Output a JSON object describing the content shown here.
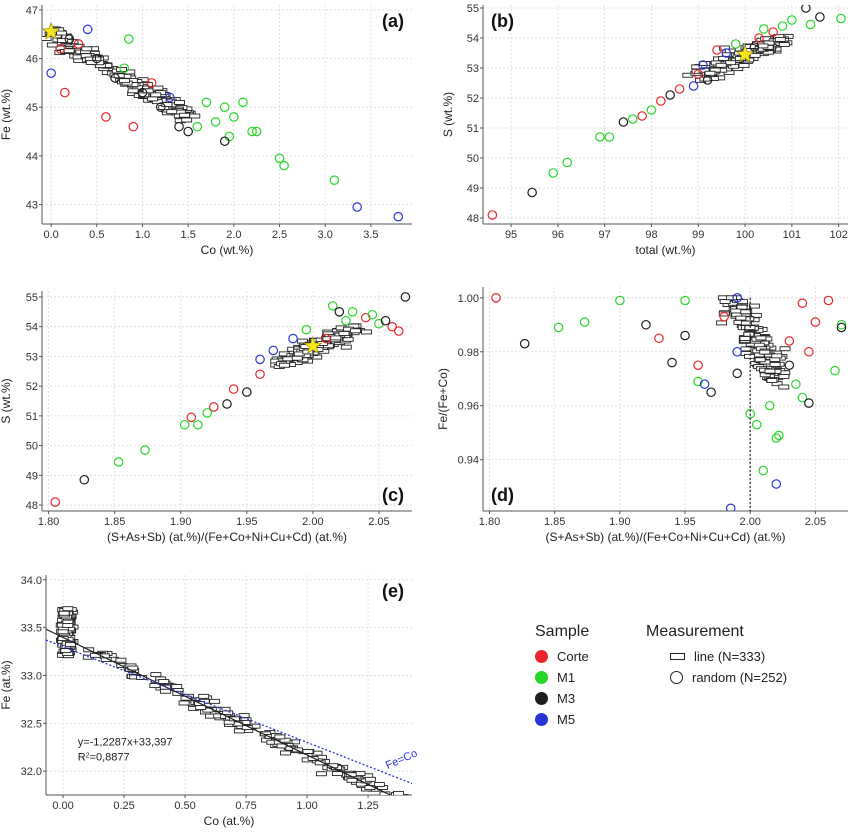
{
  "colors": {
    "Corte": "#e8262b",
    "M1": "#27d627",
    "M3": "#1f1f1f",
    "M5": "#2a34d6",
    "star": "#f7e51e",
    "fit_line": "#222222",
    "ideal_line": "#2a34d6"
  },
  "legend": {
    "sample_title": "Sample",
    "measurement_title": "Measurement",
    "samples": [
      {
        "label": "Corte",
        "color": "#e8262b"
      },
      {
        "label": "M1",
        "color": "#27d627"
      },
      {
        "label": "M3",
        "color": "#1f1f1f"
      },
      {
        "label": "M5",
        "color": "#2a34d6"
      }
    ],
    "measurements": [
      {
        "label": "line (N=333)",
        "symbol": "rectangle"
      },
      {
        "label": "random (N=252)",
        "symbol": "circle"
      }
    ]
  },
  "chart_data": [
    {
      "id": "a",
      "panel_label": "(a)",
      "type": "scatter",
      "xlabel": "Co (wt.%)",
      "ylabel": "Fe (wt.%)",
      "xlim": [
        -0.1,
        3.95
      ],
      "ylim": [
        42.6,
        47.1
      ],
      "xticks": [
        0.0,
        0.5,
        1.0,
        1.5,
        2.0,
        2.5,
        3.0,
        3.5
      ],
      "xtick_labels": [
        "0.0",
        "0.5",
        "1.0",
        "1.5",
        "2.0",
        "2.5",
        "3.0",
        "3.5"
      ],
      "yticks": [
        43,
        44,
        45,
        46,
        47
      ],
      "ytick_labels": [
        "43",
        "44",
        "45",
        "46",
        "47"
      ],
      "grid": true,
      "line_trend": {
        "x": [
          0.0,
          1.5
        ],
        "y": [
          46.5,
          44.8
        ],
        "n": 180
      },
      "random_points": [
        {
          "x": 0.1,
          "y": 46.2,
          "s": "Corte"
        },
        {
          "x": 0.15,
          "y": 45.3,
          "s": "Corte"
        },
        {
          "x": 0.6,
          "y": 44.8,
          "s": "Corte"
        },
        {
          "x": 0.9,
          "y": 44.6,
          "s": "Corte"
        },
        {
          "x": 1.1,
          "y": 45.5,
          "s": "Corte"
        },
        {
          "x": 0.3,
          "y": 46.3,
          "s": "Corte"
        },
        {
          "x": 0.8,
          "y": 45.8,
          "s": "M1"
        },
        {
          "x": 0.85,
          "y": 46.4,
          "s": "M1"
        },
        {
          "x": 1.7,
          "y": 45.1,
          "s": "M1"
        },
        {
          "x": 1.8,
          "y": 44.7,
          "s": "M1"
        },
        {
          "x": 1.9,
          "y": 45.0,
          "s": "M1"
        },
        {
          "x": 2.0,
          "y": 44.8,
          "s": "M1"
        },
        {
          "x": 2.1,
          "y": 45.1,
          "s": "M1"
        },
        {
          "x": 2.2,
          "y": 44.5,
          "s": "M1"
        },
        {
          "x": 2.25,
          "y": 44.5,
          "s": "M1"
        },
        {
          "x": 2.5,
          "y": 43.95,
          "s": "M1"
        },
        {
          "x": 2.55,
          "y": 43.8,
          "s": "M1"
        },
        {
          "x": 3.1,
          "y": 43.5,
          "s": "M1"
        },
        {
          "x": 1.6,
          "y": 44.6,
          "s": "M1"
        },
        {
          "x": 1.95,
          "y": 44.4,
          "s": "M1"
        },
        {
          "x": 0.4,
          "y": 46.6,
          "s": "M5"
        },
        {
          "x": 0.0,
          "y": 45.7,
          "s": "M5"
        },
        {
          "x": 1.3,
          "y": 45.2,
          "s": "M5"
        },
        {
          "x": 3.35,
          "y": 42.95,
          "s": "M5"
        },
        {
          "x": 3.8,
          "y": 42.75,
          "s": "M5"
        },
        {
          "x": 0.5,
          "y": 46.0,
          "s": "M3"
        },
        {
          "x": 0.7,
          "y": 45.6,
          "s": "M3"
        },
        {
          "x": 1.0,
          "y": 45.3,
          "s": "M3"
        },
        {
          "x": 1.2,
          "y": 45.0,
          "s": "M3"
        },
        {
          "x": 1.4,
          "y": 44.6,
          "s": "M3"
        },
        {
          "x": 1.5,
          "y": 44.5,
          "s": "M3"
        },
        {
          "x": 1.9,
          "y": 44.3,
          "s": "M3"
        },
        {
          "x": 0.2,
          "y": 46.4,
          "s": "M3"
        }
      ],
      "star": {
        "x": 0.0,
        "y": 46.55
      }
    },
    {
      "id": "b",
      "panel_label": "(b)",
      "type": "scatter",
      "xlabel": "total (wt.%)",
      "ylabel": "S (wt.%)",
      "xlim": [
        94.4,
        102.2
      ],
      "ylim": [
        47.8,
        55.1
      ],
      "xticks": [
        95,
        96,
        97,
        98,
        99,
        100,
        101,
        102
      ],
      "xtick_labels": [
        "95",
        "96",
        "97",
        "98",
        "99",
        "100",
        "101",
        "102"
      ],
      "yticks": [
        48,
        49,
        50,
        51,
        52,
        53,
        54,
        55
      ],
      "ytick_labels": [
        "48",
        "49",
        "50",
        "51",
        "52",
        "53",
        "54",
        "55"
      ],
      "grid": true,
      "line_trend": {
        "x": [
          99.0,
          100.8
        ],
        "y": [
          52.7,
          54.0
        ],
        "n": 170
      },
      "random_points": [
        {
          "x": 94.6,
          "y": 48.1,
          "s": "Corte"
        },
        {
          "x": 97.8,
          "y": 51.4,
          "s": "Corte"
        },
        {
          "x": 98.2,
          "y": 51.9,
          "s": "Corte"
        },
        {
          "x": 98.6,
          "y": 52.3,
          "s": "Corte"
        },
        {
          "x": 99.4,
          "y": 53.6,
          "s": "Corte"
        },
        {
          "x": 100.3,
          "y": 54.0,
          "s": "Corte"
        },
        {
          "x": 100.6,
          "y": 54.2,
          "s": "Corte"
        },
        {
          "x": 99.0,
          "y": 52.8,
          "s": "Corte"
        },
        {
          "x": 95.9,
          "y": 49.5,
          "s": "M1"
        },
        {
          "x": 96.2,
          "y": 49.85,
          "s": "M1"
        },
        {
          "x": 96.9,
          "y": 50.7,
          "s": "M1"
        },
        {
          "x": 97.1,
          "y": 50.7,
          "s": "M1"
        },
        {
          "x": 97.6,
          "y": 51.3,
          "s": "M1"
        },
        {
          "x": 98.0,
          "y": 51.6,
          "s": "M1"
        },
        {
          "x": 100.8,
          "y": 54.4,
          "s": "M1"
        },
        {
          "x": 101.0,
          "y": 54.6,
          "s": "M1"
        },
        {
          "x": 101.4,
          "y": 54.45,
          "s": "M1"
        },
        {
          "x": 102.05,
          "y": 54.65,
          "s": "M1"
        },
        {
          "x": 100.4,
          "y": 54.3,
          "s": "M1"
        },
        {
          "x": 99.8,
          "y": 53.8,
          "s": "M1"
        },
        {
          "x": 95.45,
          "y": 48.85,
          "s": "M3"
        },
        {
          "x": 97.4,
          "y": 51.2,
          "s": "M3"
        },
        {
          "x": 98.4,
          "y": 52.1,
          "s": "M3"
        },
        {
          "x": 101.3,
          "y": 55.0,
          "s": "M3"
        },
        {
          "x": 101.6,
          "y": 54.7,
          "s": "M3"
        },
        {
          "x": 99.2,
          "y": 52.6,
          "s": "M3"
        },
        {
          "x": 100.2,
          "y": 53.7,
          "s": "M3"
        },
        {
          "x": 99.1,
          "y": 53.1,
          "s": "M5"
        },
        {
          "x": 98.9,
          "y": 52.4,
          "s": "M5"
        },
        {
          "x": 99.6,
          "y": 53.5,
          "s": "M5"
        }
      ],
      "star": {
        "x": 100.0,
        "y": 53.45
      }
    },
    {
      "id": "c",
      "panel_label": "(c)",
      "type": "scatter",
      "xlabel": "(S+As+Sb) (at.%)/(Fe+Co+Ni+Cu+Cd) (at.%)",
      "ylabel": "S (wt.%)",
      "xlim": [
        1.795,
        2.075
      ],
      "ylim": [
        47.8,
        55.2
      ],
      "xticks": [
        1.8,
        1.85,
        1.9,
        1.95,
        2.0,
        2.05
      ],
      "xtick_labels": [
        "1.80",
        "1.85",
        "1.90",
        "1.95",
        "2.00",
        "2.05"
      ],
      "yticks": [
        48,
        49,
        50,
        51,
        52,
        53,
        54,
        55
      ],
      "ytick_labels": [
        "48",
        "49",
        "50",
        "51",
        "52",
        "53",
        "54",
        "55"
      ],
      "grid": true,
      "line_trend": {
        "x": [
          1.975,
          2.03
        ],
        "y": [
          52.7,
          53.9
        ],
        "n": 170
      },
      "random_points": [
        {
          "x": 1.805,
          "y": 48.1,
          "s": "Corte"
        },
        {
          "x": 1.908,
          "y": 50.95,
          "s": "Corte"
        },
        {
          "x": 1.925,
          "y": 51.3,
          "s": "Corte"
        },
        {
          "x": 1.94,
          "y": 51.9,
          "s": "Corte"
        },
        {
          "x": 1.96,
          "y": 52.4,
          "s": "Corte"
        },
        {
          "x": 2.06,
          "y": 54.0,
          "s": "Corte"
        },
        {
          "x": 2.065,
          "y": 53.85,
          "s": "Corte"
        },
        {
          "x": 2.04,
          "y": 54.3,
          "s": "Corte"
        },
        {
          "x": 2.01,
          "y": 53.6,
          "s": "Corte"
        },
        {
          "x": 1.853,
          "y": 49.45,
          "s": "M1"
        },
        {
          "x": 1.873,
          "y": 49.85,
          "s": "M1"
        },
        {
          "x": 1.903,
          "y": 50.7,
          "s": "M1"
        },
        {
          "x": 1.913,
          "y": 50.7,
          "s": "M1"
        },
        {
          "x": 1.92,
          "y": 51.1,
          "s": "M1"
        },
        {
          "x": 2.015,
          "y": 54.7,
          "s": "M1"
        },
        {
          "x": 2.03,
          "y": 54.5,
          "s": "M1"
        },
        {
          "x": 2.045,
          "y": 54.4,
          "s": "M1"
        },
        {
          "x": 2.025,
          "y": 54.2,
          "s": "M1"
        },
        {
          "x": 2.05,
          "y": 54.1,
          "s": "M1"
        },
        {
          "x": 1.995,
          "y": 53.9,
          "s": "M1"
        },
        {
          "x": 1.827,
          "y": 48.85,
          "s": "M3"
        },
        {
          "x": 1.935,
          "y": 51.4,
          "s": "M3"
        },
        {
          "x": 1.95,
          "y": 51.8,
          "s": "M3"
        },
        {
          "x": 2.07,
          "y": 55.0,
          "s": "M3"
        },
        {
          "x": 2.055,
          "y": 54.2,
          "s": "M3"
        },
        {
          "x": 2.02,
          "y": 54.5,
          "s": "M3"
        },
        {
          "x": 1.97,
          "y": 53.2,
          "s": "M5"
        },
        {
          "x": 1.96,
          "y": 52.9,
          "s": "M5"
        },
        {
          "x": 1.985,
          "y": 53.6,
          "s": "M5"
        }
      ],
      "star": {
        "x": 2.0,
        "y": 53.35
      }
    },
    {
      "id": "d",
      "panel_label": "(d)",
      "type": "scatter",
      "xlabel": "(S+As+Sb) (at.%)/(Fe+Co+Ni+Cu+Cd) (at.%)",
      "ylabel": "Fe/(Fe+Co)",
      "xlim": [
        1.795,
        2.075
      ],
      "ylim": [
        0.921,
        1.004
      ],
      "xticks": [
        1.8,
        1.85,
        1.9,
        1.95,
        2.0,
        2.05
      ],
      "xtick_labels": [
        "1.80",
        "1.85",
        "1.90",
        "1.95",
        "2.00",
        "2.05"
      ],
      "yticks": [
        0.94,
        0.96,
        0.98,
        1.0
      ],
      "ytick_labels": [
        "0.94",
        "0.96",
        "0.98",
        "1.00"
      ],
      "grid": true,
      "ideal_x": 2.0,
      "line_trend": {
        "x": [
          1.985,
          2.02
        ],
        "y": [
          0.999,
          0.972
        ],
        "n": 150
      },
      "random_points": [
        {
          "x": 1.805,
          "y": 1.0,
          "s": "Corte"
        },
        {
          "x": 1.93,
          "y": 0.985,
          "s": "Corte"
        },
        {
          "x": 1.96,
          "y": 0.975,
          "s": "Corte"
        },
        {
          "x": 2.04,
          "y": 0.998,
          "s": "Corte"
        },
        {
          "x": 2.045,
          "y": 0.98,
          "s": "Corte"
        },
        {
          "x": 2.05,
          "y": 0.991,
          "s": "Corte"
        },
        {
          "x": 2.06,
          "y": 0.999,
          "s": "Corte"
        },
        {
          "x": 1.98,
          "y": 0.993,
          "s": "Corte"
        },
        {
          "x": 2.03,
          "y": 0.984,
          "s": "Corte"
        },
        {
          "x": 1.853,
          "y": 0.989,
          "s": "M1"
        },
        {
          "x": 1.873,
          "y": 0.991,
          "s": "M1"
        },
        {
          "x": 1.9,
          "y": 0.999,
          "s": "M1"
        },
        {
          "x": 1.96,
          "y": 0.969,
          "s": "M1"
        },
        {
          "x": 2.0,
          "y": 0.957,
          "s": "M1"
        },
        {
          "x": 2.005,
          "y": 0.953,
          "s": "M1"
        },
        {
          "x": 2.01,
          "y": 0.936,
          "s": "M1"
        },
        {
          "x": 2.015,
          "y": 0.96,
          "s": "M1"
        },
        {
          "x": 2.02,
          "y": 0.948,
          "s": "M1"
        },
        {
          "x": 2.022,
          "y": 0.949,
          "s": "M1"
        },
        {
          "x": 2.035,
          "y": 0.968,
          "s": "M1"
        },
        {
          "x": 2.065,
          "y": 0.973,
          "s": "M1"
        },
        {
          "x": 2.07,
          "y": 0.99,
          "s": "M1"
        },
        {
          "x": 1.95,
          "y": 0.999,
          "s": "M1"
        },
        {
          "x": 2.04,
          "y": 0.963,
          "s": "M1"
        },
        {
          "x": 1.827,
          "y": 0.983,
          "s": "M3"
        },
        {
          "x": 1.92,
          "y": 0.99,
          "s": "M3"
        },
        {
          "x": 1.94,
          "y": 0.976,
          "s": "M3"
        },
        {
          "x": 1.97,
          "y": 0.965,
          "s": "M3"
        },
        {
          "x": 2.03,
          "y": 0.975,
          "s": "M3"
        },
        {
          "x": 2.045,
          "y": 0.961,
          "s": "M3"
        },
        {
          "x": 2.07,
          "y": 0.989,
          "s": "M3"
        },
        {
          "x": 1.99,
          "y": 0.972,
          "s": "M3"
        },
        {
          "x": 1.95,
          "y": 0.986,
          "s": "M3"
        },
        {
          "x": 1.985,
          "y": 0.922,
          "s": "M5"
        },
        {
          "x": 2.02,
          "y": 0.931,
          "s": "M5"
        },
        {
          "x": 1.965,
          "y": 0.968,
          "s": "M5"
        },
        {
          "x": 1.99,
          "y": 0.98,
          "s": "M5"
        },
        {
          "x": 1.99,
          "y": 1.0,
          "s": "M5"
        }
      ]
    },
    {
      "id": "e",
      "panel_label": "(e)",
      "type": "scatter",
      "xlabel": "Co (at.%)",
      "ylabel": "Fe (at.%)",
      "xlim": [
        -0.07,
        1.43
      ],
      "ylim": [
        31.75,
        34.05
      ],
      "xticks": [
        0.0,
        0.25,
        0.5,
        0.75,
        1.0,
        1.25
      ],
      "xtick_labels": [
        "0.00",
        "0.25",
        "0.50",
        "0.75",
        "1.00",
        "1.25"
      ],
      "yticks": [
        32.0,
        32.5,
        33.0,
        33.5,
        34.0
      ],
      "ytick_labels": [
        "32.0",
        "32.5",
        "33.0",
        "33.5",
        "34.0"
      ],
      "grid": true,
      "line_trend": {
        "x": [
          0.0,
          1.4
        ],
        "y": [
          33.4,
          31.68
        ],
        "n": 300
      },
      "fit": {
        "slope": -1.2287,
        "intercept": 33.397,
        "x_range": [
          -0.07,
          1.43
        ]
      },
      "ideal": {
        "slope": -1.0,
        "intercept": 33.3,
        "x_range": [
          -0.07,
          1.43
        ],
        "label": "Fe=Co"
      },
      "equation": "y=-1,2287x+33,397",
      "r2_label": "R",
      "r2_sup": "2",
      "r2_value": "=0,8877"
    }
  ]
}
